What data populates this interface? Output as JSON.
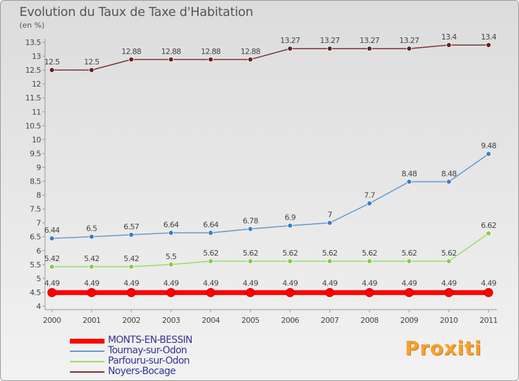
{
  "title": "Evolution du Taux de Taxe d'Habitation",
  "unit": "(en %)",
  "brand": "Proxiti",
  "chart_data": {
    "type": "line",
    "title": "Evolution du Taux de Taxe d'Habitation",
    "ylabel": "(en %)",
    "xlabel": "",
    "ylim": [
      4,
      13.5
    ],
    "ytick_step": 0.5,
    "grid": false,
    "legend_position": "bottom-left",
    "x": [
      "2000",
      "2001",
      "2002",
      "2003",
      "2004",
      "2005",
      "2006",
      "2007",
      "2008",
      "2009",
      "2010",
      "2011"
    ],
    "series": [
      {
        "name": "MONTS-EN-BESSIN",
        "color": "#ff0000",
        "marker_color": "#ff0000",
        "values": [
          4.49,
          4.49,
          4.49,
          4.49,
          4.49,
          4.49,
          4.49,
          4.49,
          4.49,
          4.49,
          4.49,
          4.49
        ],
        "labels": [
          "4.49",
          "4.49",
          "4.49",
          "4.49",
          "4.49",
          "4.49",
          "4.49",
          "4.49",
          "4.49",
          "4.49",
          "4.49",
          "4.49"
        ]
      },
      {
        "name": "Tournay-sur-Odon",
        "color": "#6699cc",
        "marker_color": "#3d7fc1",
        "values": [
          6.44,
          6.5,
          6.57,
          6.64,
          6.64,
          6.78,
          6.9,
          7,
          7.7,
          8.48,
          8.48,
          9.48
        ],
        "labels": [
          "6.44",
          "6.5",
          "6.57",
          "6.64",
          "6.64",
          "6.78",
          "6.9",
          "7",
          "7.7",
          "8.48",
          "8.48",
          "9.48"
        ]
      },
      {
        "name": "Parfouru-sur-Odon",
        "color": "#99dd66",
        "marker_color": "#88cc44",
        "values": [
          5.42,
          5.42,
          5.42,
          5.5,
          5.62,
          5.62,
          5.62,
          5.62,
          5.62,
          5.62,
          5.62,
          6.62
        ],
        "labels": [
          "5.42",
          "5.42",
          "5.42",
          "5.5",
          "5.62",
          "5.62",
          "5.62",
          "5.62",
          "5.62",
          "5.62",
          "5.62",
          "6.62"
        ]
      },
      {
        "name": "Noyers-Bocage",
        "color": "#773333",
        "marker_color": "#662222",
        "values": [
          12.5,
          12.5,
          12.88,
          12.88,
          12.88,
          12.88,
          13.27,
          13.27,
          13.27,
          13.27,
          13.4,
          13.4
        ],
        "labels": [
          "12.5",
          "12.5",
          "12.88",
          "12.88",
          "12.88",
          "12.88",
          "13.27",
          "13.27",
          "13.27",
          "13.27",
          "13.4",
          "13.4"
        ]
      }
    ]
  }
}
